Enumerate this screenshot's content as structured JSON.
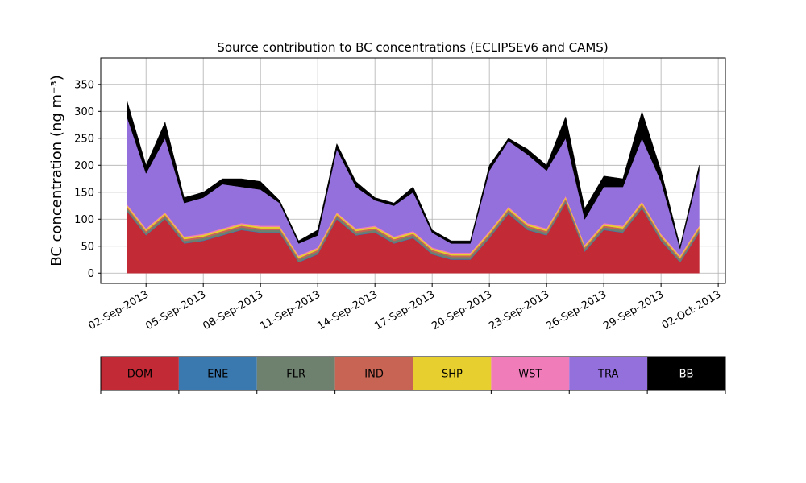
{
  "chart_data": {
    "type": "stacked_area",
    "title": "Source contribution to BC concentrations (ECLIPSEv6 and CAMS)",
    "ylabel": "BC concentration (ng m⁻³)",
    "x": [
      "2013-09-01",
      "2013-09-02",
      "2013-09-03",
      "2013-09-04",
      "2013-09-05",
      "2013-09-06",
      "2013-09-07",
      "2013-09-08",
      "2013-09-09",
      "2013-09-10",
      "2013-09-11",
      "2013-09-12",
      "2013-09-13",
      "2013-09-14",
      "2013-09-15",
      "2013-09-16",
      "2013-09-17",
      "2013-09-18",
      "2013-09-19",
      "2013-09-20",
      "2013-09-21",
      "2013-09-22",
      "2013-09-23",
      "2013-09-24",
      "2013-09-25",
      "2013-09-26",
      "2013-09-27",
      "2013-09-28",
      "2013-09-29",
      "2013-09-30",
      "2013-10-01"
    ],
    "series": [
      {
        "name": "DOM",
        "color": "#c22a36",
        "values": [
          115,
          70,
          100,
          55,
          60,
          70,
          80,
          75,
          75,
          20,
          35,
          100,
          70,
          75,
          55,
          65,
          35,
          25,
          25,
          65,
          110,
          80,
          70,
          130,
          40,
          80,
          75,
          120,
          60,
          20,
          75
        ]
      },
      {
        "name": "ENE",
        "color": "#3a78b0",
        "values": [
          1,
          1,
          1,
          1,
          1,
          1,
          1,
          1,
          1,
          1,
          1,
          1,
          1,
          1,
          1,
          1,
          1,
          1,
          1,
          1,
          1,
          1,
          1,
          1,
          1,
          1,
          1,
          1,
          1,
          1,
          1
        ]
      },
      {
        "name": "FLR",
        "color": "#6e806e",
        "values": [
          4,
          4,
          4,
          4,
          4,
          4,
          4,
          4,
          4,
          4,
          4,
          4,
          4,
          4,
          4,
          4,
          4,
          4,
          4,
          4,
          4,
          4,
          4,
          4,
          4,
          4,
          4,
          4,
          4,
          4,
          4
        ]
      },
      {
        "name": "IND",
        "color": "#c86454",
        "values": [
          3,
          3,
          3,
          3,
          3,
          3,
          3,
          3,
          3,
          3,
          3,
          3,
          3,
          3,
          3,
          3,
          3,
          3,
          3,
          3,
          3,
          3,
          3,
          3,
          3,
          3,
          3,
          3,
          3,
          3,
          3
        ]
      },
      {
        "name": "SHP",
        "color": "#e6cf2e",
        "values": [
          3,
          3,
          3,
          3,
          3,
          3,
          3,
          3,
          3,
          3,
          3,
          3,
          3,
          3,
          3,
          3,
          3,
          3,
          3,
          3,
          3,
          3,
          3,
          3,
          3,
          3,
          3,
          3,
          3,
          3,
          3
        ]
      },
      {
        "name": "WST",
        "color": "#f07cba",
        "values": [
          2,
          2,
          2,
          2,
          2,
          2,
          2,
          2,
          2,
          2,
          2,
          2,
          2,
          2,
          2,
          2,
          2,
          2,
          2,
          2,
          2,
          2,
          2,
          2,
          2,
          2,
          2,
          2,
          2,
          2,
          2
        ]
      },
      {
        "name": "TRA",
        "color": "#9370db",
        "values": [
          162,
          102,
          137,
          62,
          67,
          82,
          67,
          67,
          42,
          22,
          22,
          117,
          77,
          47,
          57,
          72,
          27,
          17,
          17,
          112,
          122,
          127,
          107,
          107,
          47,
          67,
          72,
          117,
          97,
          12,
          102
        ]
      },
      {
        "name": "BB",
        "color": "#000000",
        "values": [
          30,
          15,
          30,
          10,
          10,
          10,
          15,
          15,
          5,
          5,
          10,
          10,
          10,
          5,
          5,
          10,
          5,
          5,
          5,
          10,
          5,
          10,
          10,
          40,
          20,
          20,
          15,
          50,
          20,
          5,
          10
        ]
      }
    ],
    "xlim": [
      "2013-08-30T15:00",
      "2013-10-02T09:00"
    ],
    "xticks": [
      {
        "value": "2013-09-02",
        "label": "02-Sep-2013"
      },
      {
        "value": "2013-09-05",
        "label": "05-Sep-2013"
      },
      {
        "value": "2013-09-08",
        "label": "08-Sep-2013"
      },
      {
        "value": "2013-09-11",
        "label": "11-Sep-2013"
      },
      {
        "value": "2013-09-14",
        "label": "14-Sep-2013"
      },
      {
        "value": "2013-09-17",
        "label": "17-Sep-2013"
      },
      {
        "value": "2013-09-20",
        "label": "20-Sep-2013"
      },
      {
        "value": "2013-09-23",
        "label": "23-Sep-2013"
      },
      {
        "value": "2013-09-26",
        "label": "26-Sep-2013"
      },
      {
        "value": "2013-09-29",
        "label": "29-Sep-2013"
      },
      {
        "value": "2013-10-02",
        "label": "02-Oct-2013"
      }
    ],
    "ylim": [
      -19,
      399
    ],
    "yticks": [
      0,
      50,
      100,
      150,
      200,
      250,
      300,
      350
    ],
    "grid": true
  }
}
